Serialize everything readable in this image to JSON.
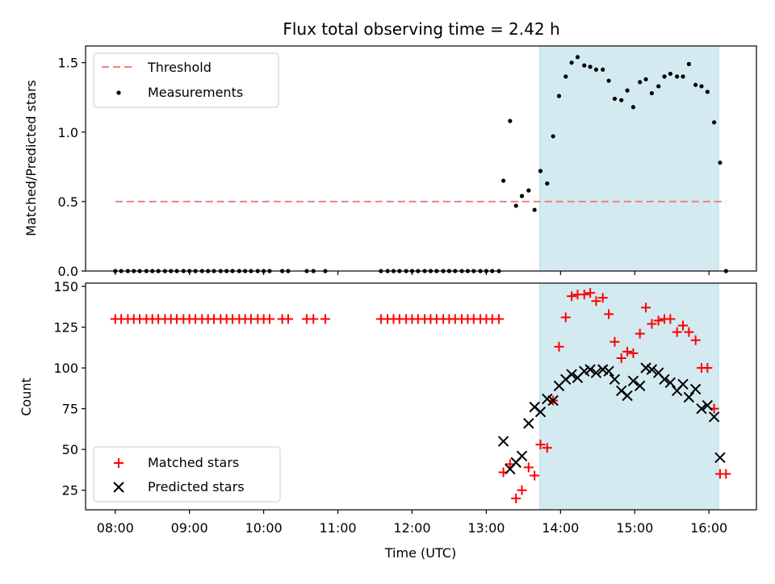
{
  "chart_data": [
    {
      "type": "scatter",
      "title": "Flux total observing time = 2.42 h",
      "xlabel": "",
      "ylabel": "Matched/Predicted stars",
      "ylim": [
        0,
        1.62
      ],
      "yticks": [
        "0.0",
        "0.5",
        "1.0",
        "1.5"
      ],
      "ytick_values": [
        0,
        0.5,
        1.0,
        1.5
      ],
      "xlim_hours": [
        7.6,
        16.64
      ],
      "xtick_values": [
        8,
        9,
        10,
        11,
        12,
        13,
        14,
        15,
        16
      ],
      "shaded_region_hours": [
        13.72,
        16.13
      ],
      "shaded_color": "#d3eaf0",
      "threshold": {
        "name": "Threshold",
        "value": 0.5,
        "x_range_hours": [
          8.0,
          16.23
        ],
        "color": "#f08080"
      },
      "measurements": {
        "name": "Measurements",
        "color": "#000000",
        "x": [
          8.0,
          8.08,
          8.17,
          8.25,
          8.33,
          8.42,
          8.5,
          8.58,
          8.67,
          8.75,
          8.83,
          8.92,
          9.0,
          9.08,
          9.17,
          9.25,
          9.33,
          9.42,
          9.5,
          9.58,
          9.67,
          9.75,
          9.83,
          9.92,
          10.0,
          10.08,
          10.25,
          10.33,
          10.58,
          10.67,
          10.83,
          11.58,
          11.67,
          11.75,
          11.83,
          11.92,
          12.0,
          12.08,
          12.17,
          12.25,
          12.33,
          12.42,
          12.5,
          12.58,
          12.67,
          12.75,
          12.83,
          12.92,
          13.0,
          13.08,
          13.17,
          13.23,
          13.32,
          13.4,
          13.48,
          13.57,
          13.65,
          13.73,
          13.82,
          13.9,
          13.98,
          14.07,
          14.15,
          14.23,
          14.32,
          14.4,
          14.48,
          14.57,
          14.65,
          14.73,
          14.82,
          14.9,
          14.98,
          15.07,
          15.15,
          15.23,
          15.32,
          15.4,
          15.48,
          15.57,
          15.65,
          15.73,
          15.82,
          15.9,
          15.98,
          16.07,
          16.15,
          16.23
        ],
        "y": [
          0,
          0,
          0,
          0,
          0,
          0,
          0,
          0,
          0,
          0,
          0,
          0,
          0,
          0,
          0,
          0,
          0,
          0,
          0,
          0,
          0,
          0,
          0,
          0,
          0,
          0,
          0,
          0,
          0,
          0,
          0,
          0,
          0,
          0,
          0,
          0,
          0,
          0,
          0,
          0,
          0,
          0,
          0,
          0,
          0,
          0,
          0,
          0,
          0,
          0,
          0,
          0.65,
          1.08,
          0.47,
          0.54,
          0.58,
          0.44,
          0.72,
          0.63,
          0.97,
          1.26,
          1.4,
          1.5,
          1.54,
          1.48,
          1.47,
          1.45,
          1.45,
          1.37,
          1.24,
          1.23,
          1.3,
          1.18,
          1.36,
          1.38,
          1.28,
          1.33,
          1.4,
          1.42,
          1.4,
          1.4,
          1.49,
          1.34,
          1.33,
          1.29,
          1.07,
          0.78,
          0
        ]
      },
      "legend": {
        "position": "upper-left"
      }
    },
    {
      "type": "scatter",
      "title": "",
      "xlabel": "Time (UTC)",
      "ylabel": "Count",
      "ylim": [
        13,
        152
      ],
      "yticks": [
        "25",
        "50",
        "75",
        "100",
        "125",
        "150"
      ],
      "ytick_values": [
        25,
        50,
        75,
        100,
        125,
        150
      ],
      "xlim_hours": [
        7.6,
        16.64
      ],
      "xtick_labels": [
        "08:00",
        "09:00",
        "10:00",
        "11:00",
        "12:00",
        "13:00",
        "14:00",
        "15:00",
        "16:00"
      ],
      "xtick_values": [
        8,
        9,
        10,
        11,
        12,
        13,
        14,
        15,
        16
      ],
      "shaded_region_hours": [
        13.72,
        16.13
      ],
      "shaded_color": "#d3eaf0",
      "matched": {
        "name": "Matched stars",
        "color": "#ff0000",
        "x": [
          8.0,
          8.08,
          8.17,
          8.25,
          8.33,
          8.42,
          8.5,
          8.58,
          8.67,
          8.75,
          8.83,
          8.92,
          9.0,
          9.08,
          9.17,
          9.25,
          9.33,
          9.42,
          9.5,
          9.58,
          9.67,
          9.75,
          9.83,
          9.92,
          10.0,
          10.08,
          10.25,
          10.33,
          10.58,
          10.67,
          10.83,
          11.58,
          11.67,
          11.75,
          11.83,
          11.92,
          12.0,
          12.08,
          12.17,
          12.25,
          12.33,
          12.42,
          12.5,
          12.58,
          12.67,
          12.75,
          12.83,
          12.92,
          13.0,
          13.08,
          13.17,
          13.23,
          13.32,
          13.4,
          13.48,
          13.57,
          13.65,
          13.73,
          13.82,
          13.9,
          13.98,
          14.07,
          14.15,
          14.23,
          14.32,
          14.4,
          14.48,
          14.57,
          14.65,
          14.73,
          14.82,
          14.9,
          14.98,
          15.07,
          15.15,
          15.23,
          15.32,
          15.4,
          15.48,
          15.57,
          15.65,
          15.73,
          15.82,
          15.9,
          15.98,
          16.07,
          16.15,
          16.23
        ],
        "y": [
          130,
          130,
          130,
          130,
          130,
          130,
          130,
          130,
          130,
          130,
          130,
          130,
          130,
          130,
          130,
          130,
          130,
          130,
          130,
          130,
          130,
          130,
          130,
          130,
          130,
          130,
          130,
          130,
          130,
          130,
          130,
          130,
          130,
          130,
          130,
          130,
          130,
          130,
          130,
          130,
          130,
          130,
          130,
          130,
          130,
          130,
          130,
          130,
          130,
          130,
          130,
          36,
          41,
          20,
          25,
          39,
          34,
          53,
          51,
          80,
          113,
          131,
          144,
          145,
          145,
          146,
          141,
          143,
          133,
          116,
          106,
          110,
          109,
          121,
          137,
          127,
          129,
          130,
          130,
          122,
          126,
          122,
          117,
          100,
          100,
          75,
          35,
          35
        ]
      },
      "predicted": {
        "name": "Predicted stars",
        "color": "#000000",
        "x": [
          13.23,
          13.32,
          13.4,
          13.48,
          13.57,
          13.65,
          13.73,
          13.82,
          13.9,
          13.98,
          14.07,
          14.15,
          14.23,
          14.32,
          14.4,
          14.48,
          14.57,
          14.65,
          14.73,
          14.82,
          14.9,
          14.98,
          15.07,
          15.15,
          15.23,
          15.32,
          15.4,
          15.48,
          15.57,
          15.65,
          15.73,
          15.82,
          15.9,
          15.98,
          16.07,
          16.15
        ],
        "y": [
          55,
          38,
          42,
          46,
          66,
          76,
          73,
          81,
          80,
          89,
          93,
          96,
          94,
          98,
          99,
          97,
          99,
          98,
          93,
          86,
          83,
          92,
          89,
          100,
          99,
          97,
          93,
          91,
          86,
          90,
          82,
          87,
          75,
          77,
          70,
          45
        ]
      },
      "legend": {
        "position": "lower-left"
      }
    }
  ]
}
